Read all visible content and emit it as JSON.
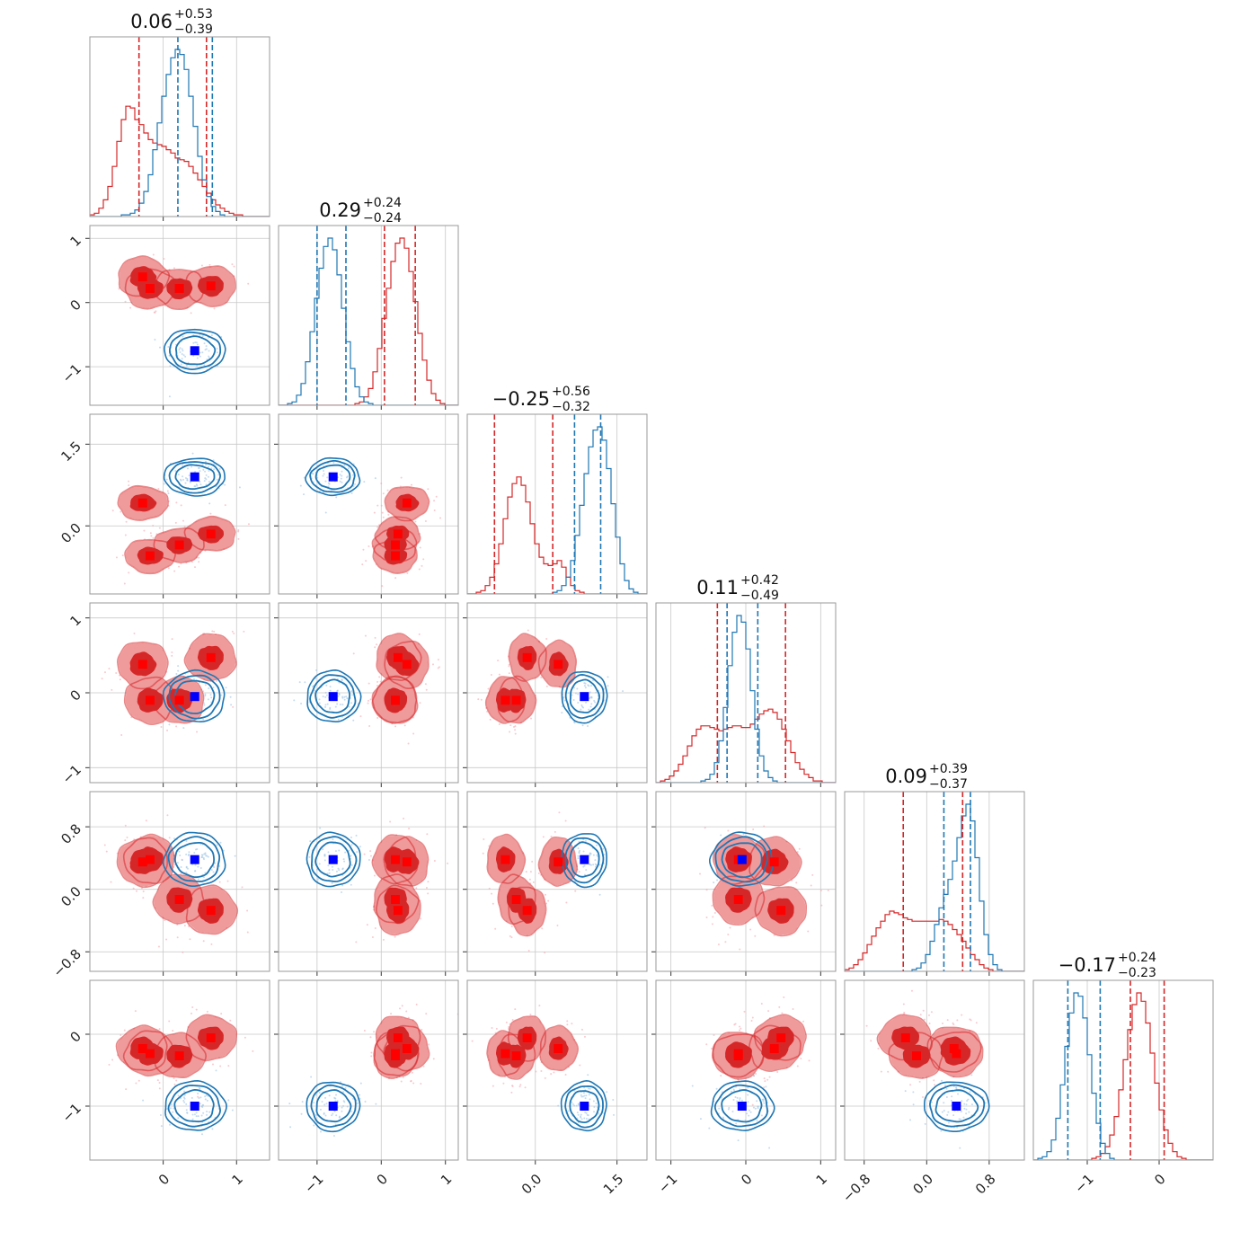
{
  "colors": {
    "red": "#d62728",
    "red_light": "#ef9a9b",
    "red_mid": "#e35a5b",
    "blue": "#1f77b4",
    "red_marker": "#ff0000",
    "blue_marker": "#0000ff"
  },
  "chart_data": {
    "type": "corner",
    "parameters": [
      {
        "range": [
          -1.0,
          1.45
        ],
        "grid": [
          0,
          1
        ],
        "ticks": [
          {
            "v": 0,
            "label": "0"
          },
          {
            "v": 1,
            "label": "1"
          }
        ],
        "title": {
          "main": "0.06",
          "sup": "+0.53",
          "sub": "−0.39"
        },
        "quantiles": {
          "red": [
            -0.33,
            0.59
          ],
          "blue": [
            0.2,
            0.67
          ]
        }
      },
      {
        "range": [
          -1.6,
          1.2
        ],
        "grid": [
          -1,
          0,
          1
        ],
        "ticks": [
          {
            "v": -1,
            "label": "−1"
          },
          {
            "v": 0,
            "label": "0"
          },
          {
            "v": 1,
            "label": "1"
          }
        ],
        "title": {
          "main": "0.29",
          "sup": "+0.24",
          "sub": "−0.24"
        },
        "quantiles": {
          "red": [
            0.05,
            0.53
          ],
          "blue": [
            -1.0,
            -0.55
          ]
        }
      },
      {
        "range": [
          -1.25,
          2.05
        ],
        "grid": [
          0.0,
          1.5
        ],
        "ticks": [
          {
            "v": 0.0,
            "label": "0.0"
          },
          {
            "v": 1.5,
            "label": "1.5"
          }
        ],
        "title": {
          "main": "−0.25",
          "sup": "+0.56",
          "sub": "−0.32"
        },
        "quantiles": {
          "red": [
            -0.75,
            0.32
          ],
          "blue": [
            0.72,
            1.2
          ]
        }
      },
      {
        "range": [
          -1.2,
          1.2
        ],
        "grid": [
          -1,
          0,
          1
        ],
        "ticks": [
          {
            "v": -1,
            "label": "−1"
          },
          {
            "v": 0,
            "label": "0"
          },
          {
            "v": 1,
            "label": "1"
          }
        ],
        "title": {
          "main": "0.11",
          "sup": "+0.42",
          "sub": "−0.49"
        },
        "quantiles": {
          "red": [
            -0.38,
            0.53
          ],
          "blue": [
            -0.25,
            0.16
          ]
        }
      },
      {
        "range": [
          -1.05,
          1.25
        ],
        "grid": [
          -0.8,
          0.0,
          0.8
        ],
        "ticks": [
          {
            "v": -0.8,
            "label": "−0.8"
          },
          {
            "v": 0.0,
            "label": "0.0"
          },
          {
            "v": 0.8,
            "label": "0.8"
          }
        ],
        "title": {
          "main": "0.09",
          "sup": "+0.39",
          "sub": "−0.37"
        },
        "quantiles": {
          "red": [
            -0.3,
            0.46
          ],
          "blue": [
            0.22,
            0.56
          ]
        }
      },
      {
        "range": [
          -1.75,
          0.75
        ],
        "grid": [
          -1,
          0
        ],
        "ticks": [
          {
            "v": -1,
            "label": "−1"
          },
          {
            "v": 0,
            "label": "0"
          }
        ],
        "title": {
          "main": "−0.17",
          "sup": "+0.24",
          "sub": "−0.23"
        },
        "quantiles": {
          "red": [
            -0.4,
            0.07
          ],
          "blue": [
            -1.27,
            -0.82
          ]
        }
      }
    ],
    "blue_truth": [
      0.43,
      -0.75,
      0.9,
      -0.05,
      0.38,
      -1.0
    ],
    "red_points": [
      [
        -0.28,
        0.4,
        0.42,
        0.38,
        0.35,
        -0.2
      ],
      [
        -0.18,
        0.22,
        -0.55,
        -0.1,
        0.38,
        -0.27
      ],
      [
        0.22,
        0.22,
        -0.35,
        -0.1,
        -0.13,
        -0.3
      ],
      [
        0.65,
        0.26,
        -0.15,
        0.47,
        -0.27,
        -0.05
      ]
    ],
    "blue_hist": [
      [
        0,
        0,
        0,
        0,
        0,
        0,
        0,
        0.01,
        0.01,
        0.02,
        0.04,
        0.08,
        0.15,
        0.25,
        0.4,
        0.56,
        0.72,
        0.85,
        0.95,
        1.0,
        0.97,
        0.88,
        0.72,
        0.54,
        0.36,
        0.22,
        0.12,
        0.06,
        0.03,
        0.01,
        0,
        0,
        0,
        0,
        0,
        0,
        0,
        0,
        0,
        0
      ],
      [
        0,
        0,
        0.01,
        0.02,
        0.06,
        0.13,
        0.26,
        0.44,
        0.64,
        0.82,
        0.95,
        1.0,
        0.93,
        0.78,
        0.58,
        0.38,
        0.22,
        0.11,
        0.05,
        0.02,
        0.01,
        0,
        0,
        0,
        0,
        0,
        0,
        0,
        0,
        0,
        0,
        0,
        0,
        0,
        0,
        0,
        0,
        0,
        0,
        0
      ],
      [
        0,
        0,
        0,
        0,
        0,
        0,
        0,
        0,
        0,
        0,
        0,
        0,
        0,
        0,
        0,
        0,
        0,
        0,
        0,
        0.01,
        0.02,
        0.05,
        0.1,
        0.2,
        0.35,
        0.53,
        0.72,
        0.88,
        0.98,
        1.0,
        0.92,
        0.75,
        0.54,
        0.34,
        0.18,
        0.08,
        0.03,
        0.01,
        0,
        0
      ],
      [
        0,
        0,
        0,
        0,
        0,
        0,
        0,
        0,
        0,
        0,
        0.01,
        0.02,
        0.05,
        0.12,
        0.25,
        0.45,
        0.7,
        0.9,
        1.0,
        0.96,
        0.8,
        0.55,
        0.32,
        0.16,
        0.07,
        0.03,
        0.01,
        0,
        0,
        0,
        0,
        0,
        0,
        0,
        0,
        0,
        0,
        0,
        0,
        0
      ],
      [
        0,
        0,
        0,
        0,
        0,
        0,
        0,
        0,
        0,
        0,
        0,
        0,
        0,
        0,
        0,
        0.01,
        0.02,
        0.05,
        0.1,
        0.18,
        0.28,
        0.38,
        0.46,
        0.55,
        0.66,
        0.8,
        0.93,
        1.0,
        0.9,
        0.68,
        0.42,
        0.22,
        0.1,
        0.04,
        0.01,
        0,
        0,
        0,
        0,
        0
      ],
      [
        0,
        0.01,
        0.02,
        0.05,
        0.12,
        0.25,
        0.45,
        0.68,
        0.88,
        1.0,
        0.98,
        0.85,
        0.63,
        0.4,
        0.22,
        0.1,
        0.04,
        0.01,
        0,
        0,
        0,
        0,
        0,
        0,
        0,
        0,
        0,
        0,
        0,
        0,
        0,
        0,
        0,
        0,
        0,
        0,
        0,
        0,
        0,
        0
      ]
    ],
    "red_hist": [
      [
        0.01,
        0.02,
        0.05,
        0.1,
        0.18,
        0.3,
        0.45,
        0.58,
        0.66,
        0.65,
        0.58,
        0.55,
        0.5,
        0.46,
        0.44,
        0.43,
        0.42,
        0.4,
        0.38,
        0.35,
        0.34,
        0.33,
        0.3,
        0.26,
        0.22,
        0.18,
        0.14,
        0.1,
        0.07,
        0.05,
        0.03,
        0.02,
        0.01,
        0.01,
        0,
        0,
        0,
        0,
        0,
        0
      ],
      [
        0,
        0,
        0,
        0,
        0,
        0,
        0,
        0,
        0,
        0,
        0,
        0,
        0,
        0,
        0,
        0,
        0,
        0.01,
        0.02,
        0.05,
        0.1,
        0.2,
        0.34,
        0.52,
        0.7,
        0.86,
        0.97,
        1.0,
        0.94,
        0.8,
        0.62,
        0.43,
        0.27,
        0.15,
        0.07,
        0.03,
        0.01,
        0,
        0,
        0
      ],
      [
        0,
        0,
        0.01,
        0.02,
        0.05,
        0.1,
        0.18,
        0.3,
        0.45,
        0.58,
        0.66,
        0.7,
        0.65,
        0.55,
        0.42,
        0.3,
        0.22,
        0.18,
        0.17,
        0.18,
        0.2,
        0.16,
        0.1,
        0.05,
        0.02,
        0.01,
        0,
        0,
        0,
        0,
        0,
        0,
        0,
        0,
        0,
        0,
        0,
        0,
        0,
        0
      ],
      [
        0,
        0.01,
        0.02,
        0.04,
        0.07,
        0.11,
        0.16,
        0.22,
        0.28,
        0.32,
        0.34,
        0.34,
        0.33,
        0.32,
        0.31,
        0.32,
        0.33,
        0.34,
        0.34,
        0.33,
        0.33,
        0.35,
        0.38,
        0.41,
        0.43,
        0.44,
        0.42,
        0.38,
        0.32,
        0.25,
        0.18,
        0.12,
        0.08,
        0.05,
        0.03,
        0.01,
        0.01,
        0,
        0,
        0
      ],
      [
        0.01,
        0.02,
        0.04,
        0.07,
        0.11,
        0.16,
        0.21,
        0.26,
        0.3,
        0.34,
        0.36,
        0.35,
        0.34,
        0.32,
        0.31,
        0.3,
        0.3,
        0.3,
        0.3,
        0.3,
        0.3,
        0.31,
        0.3,
        0.28,
        0.25,
        0.22,
        0.18,
        0.14,
        0.1,
        0.07,
        0.04,
        0.02,
        0.01,
        0,
        0,
        0,
        0,
        0,
        0,
        0
      ],
      [
        0,
        0,
        0,
        0,
        0,
        0,
        0,
        0,
        0,
        0,
        0,
        0,
        0,
        0.01,
        0.02,
        0.04,
        0.08,
        0.15,
        0.26,
        0.42,
        0.6,
        0.78,
        0.93,
        1.0,
        0.95,
        0.82,
        0.64,
        0.46,
        0.3,
        0.18,
        0.1,
        0.05,
        0.02,
        0.01,
        0,
        0,
        0,
        0,
        0,
        0
      ]
    ]
  }
}
